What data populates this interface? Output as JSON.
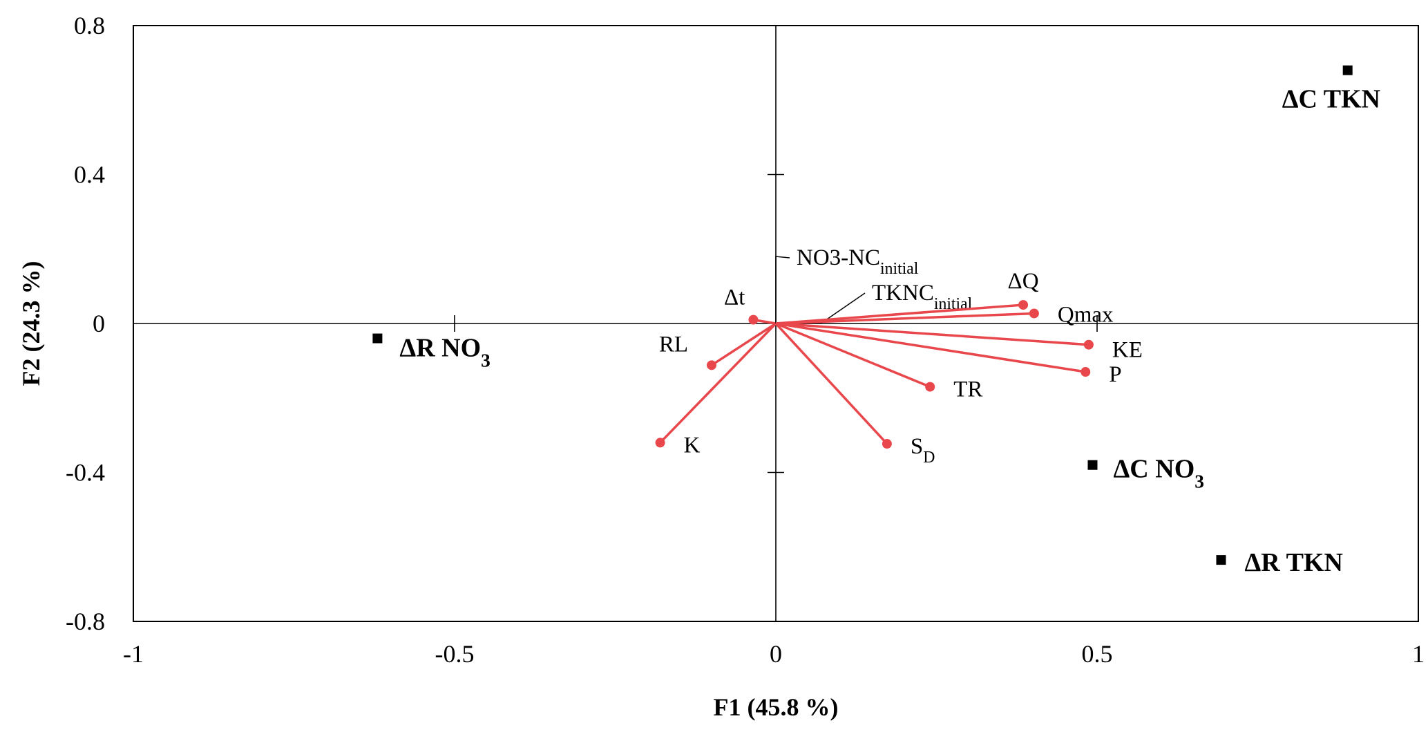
{
  "chart_data": {
    "type": "scatter",
    "title": "",
    "xlabel": "F1 (45.8 %)",
    "ylabel": "F2 (24.3 %)",
    "xlim": [
      -1,
      1
    ],
    "ylim": [
      -0.8,
      0.8
    ],
    "xticks": [
      -1,
      -0.5,
      0,
      0.5,
      1
    ],
    "xtick_labels": [
      "-1",
      "-0.5",
      "0",
      "0.5",
      "1"
    ],
    "yticks": [
      -0.8,
      -0.4,
      0,
      0.4,
      0.8
    ],
    "ytick_labels": [
      "-0.8",
      "-0.4",
      "0",
      "0.4",
      "0.8"
    ],
    "grid": false,
    "vector_color": "#e8474c",
    "marker_color": "#000000",
    "variables": [
      {
        "name": "Δt",
        "sub": "",
        "x": -0.035,
        "y": 0.01
      },
      {
        "name": "RL",
        "sub": "",
        "x": -0.1,
        "y": -0.112
      },
      {
        "name": "K",
        "sub": "",
        "x": -0.18,
        "y": -0.32
      },
      {
        "name": "NO3-NC",
        "sub": "initial",
        "x": 0.0,
        "y": 0.18,
        "leader": true
      },
      {
        "name": "TKNC",
        "sub": "initial",
        "x": 0.07,
        "y": 0.0,
        "leader": true
      },
      {
        "name": "ΔQ",
        "sub": "",
        "x": 0.385,
        "y": 0.05
      },
      {
        "name": "Qmax",
        "sub": "",
        "x": 0.402,
        "y": 0.027
      },
      {
        "name": "KE",
        "sub": "",
        "x": 0.487,
        "y": -0.057
      },
      {
        "name": "P",
        "sub": "",
        "x": 0.482,
        "y": -0.13
      },
      {
        "name": "TR",
        "sub": "",
        "x": 0.24,
        "y": -0.17
      },
      {
        "name": "S",
        "sub": "D",
        "x": 0.173,
        "y": -0.323
      }
    ],
    "observations": [
      {
        "name": "ΔC TKN",
        "sub": "",
        "x": 0.89,
        "y": 0.68
      },
      {
        "name": "ΔR NO",
        "sub": "3",
        "x": -0.62,
        "y": -0.04
      },
      {
        "name": "ΔC NO",
        "sub": "3",
        "x": 0.493,
        "y": -0.38
      },
      {
        "name": "ΔR TKN",
        "sub": "",
        "x": 0.693,
        "y": -0.635
      }
    ]
  }
}
